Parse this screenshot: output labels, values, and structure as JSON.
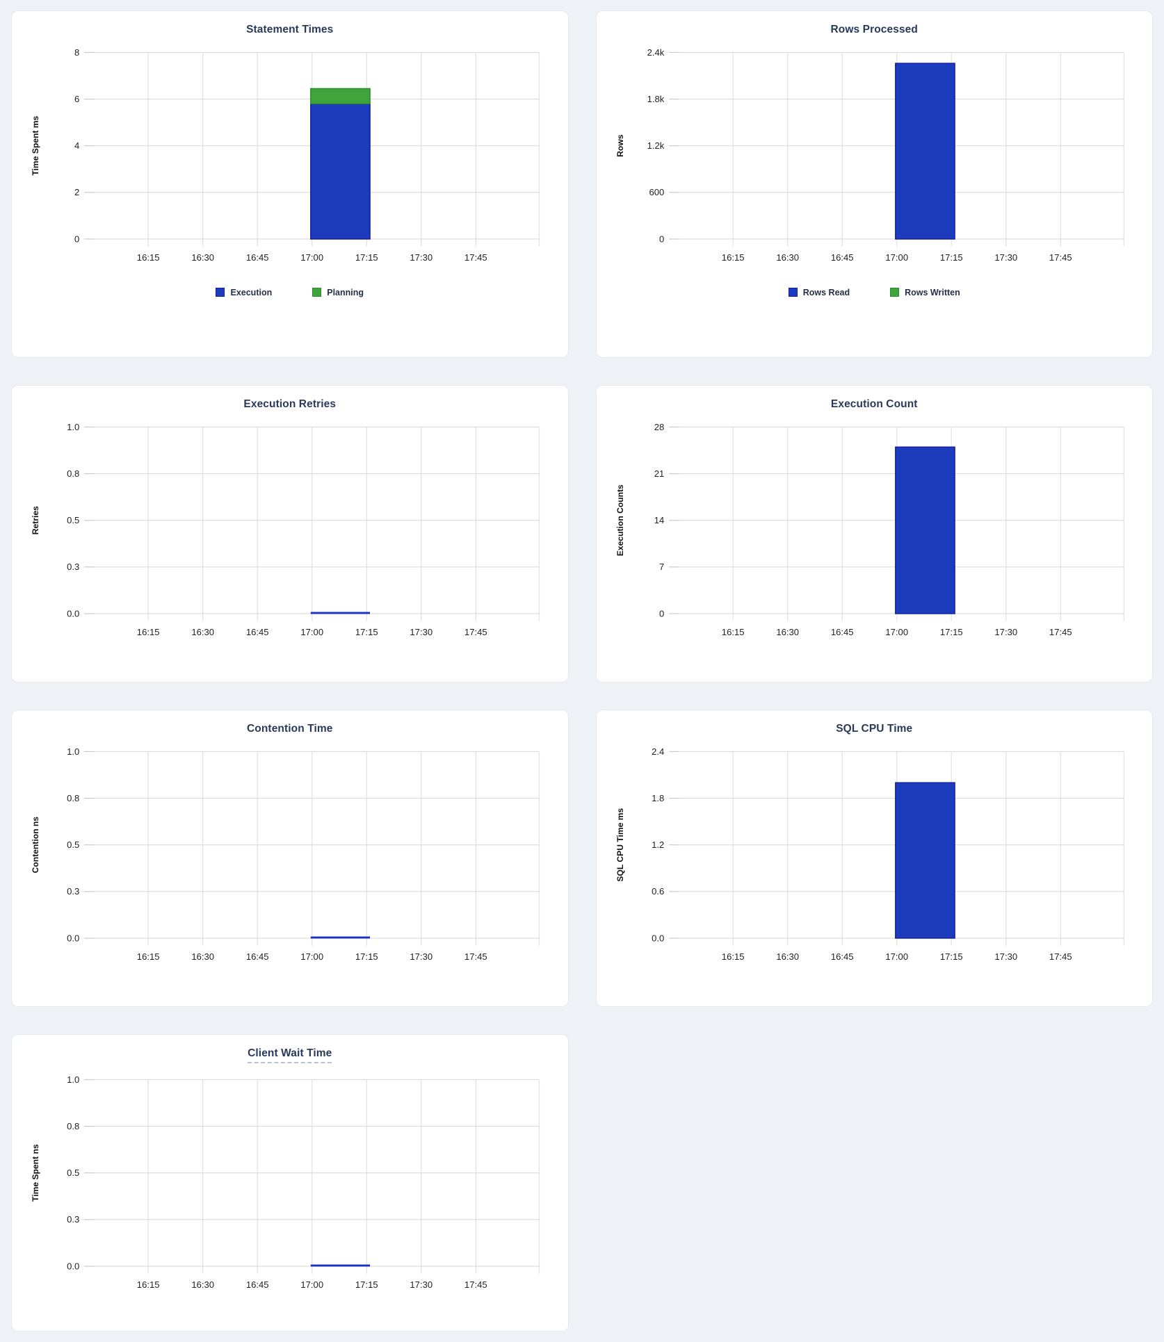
{
  "page": {
    "background_color": "#eef2f7",
    "card_background": "#ffffff"
  },
  "colors": {
    "blue_fill": "#1c3bbd",
    "blue_border": "#131fa0",
    "green_fill": "#3fa43c",
    "green_border": "#2b8c2a",
    "zero_line": "#1d33c5",
    "title_text": "#29395c",
    "grid_line": "#dedede",
    "tick_text": "#1f1f1f"
  },
  "x_axis": {
    "ticks": [
      "16:15",
      "16:30",
      "16:45",
      "17:00",
      "17:15",
      "17:30",
      "17:45"
    ],
    "data_interval": {
      "start": "17:00",
      "end": "17:15"
    }
  },
  "chart_data": [
    {
      "type": "bar",
      "stacked": true,
      "title": "Statement Times",
      "underlined": false,
      "ylabel": "Time Spent ms",
      "yticks": [
        "0",
        "2",
        "4",
        "6",
        "8"
      ],
      "ymax": 8,
      "x_interval": [
        "17:00",
        "17:15"
      ],
      "series": [
        {
          "name": "Execution",
          "color": "blue",
          "value": 5.8
        },
        {
          "name": "Planning",
          "color": "green",
          "value": 0.65
        }
      ],
      "legend": [
        {
          "label": "Execution",
          "color": "blue"
        },
        {
          "label": "Planning",
          "color": "green"
        }
      ]
    },
    {
      "type": "bar",
      "stacked": true,
      "title": "Rows Processed",
      "underlined": false,
      "ylabel": "Rows",
      "yticks": [
        "0",
        "600",
        "1.2k",
        "1.8k",
        "2.4k"
      ],
      "ymax": 2400,
      "x_interval": [
        "17:00",
        "17:15"
      ],
      "series": [
        {
          "name": "Rows Read",
          "color": "blue",
          "value": 2260
        },
        {
          "name": "Rows Written",
          "color": "green",
          "value": 0
        }
      ],
      "legend": [
        {
          "label": "Rows Read",
          "color": "blue"
        },
        {
          "label": "Rows Written",
          "color": "green"
        }
      ]
    },
    {
      "type": "line",
      "title": "Execution Retries",
      "underlined": false,
      "ylabel": "Retries",
      "yticks": [
        "0.0",
        "0.3",
        "0.5",
        "0.8",
        "1.0"
      ],
      "ymax": 1,
      "x_interval": [
        "17:00",
        "17:15"
      ],
      "series": [
        {
          "name": "Retries",
          "color": "blue",
          "value": 0
        }
      ],
      "legend": null
    },
    {
      "type": "bar",
      "stacked": false,
      "title": "Execution Count",
      "underlined": false,
      "ylabel": "Execution Counts",
      "yticks": [
        "0",
        "7",
        "14",
        "21",
        "28"
      ],
      "ymax": 28,
      "x_interval": [
        "17:00",
        "17:15"
      ],
      "series": [
        {
          "name": "Execution Count",
          "color": "blue",
          "value": 25
        }
      ],
      "legend": null
    },
    {
      "type": "line",
      "title": "Contention Time",
      "underlined": false,
      "ylabel": "Contention ns",
      "yticks": [
        "0.0",
        "0.3",
        "0.5",
        "0.8",
        "1.0"
      ],
      "ymax": 1,
      "x_interval": [
        "17:00",
        "17:15"
      ],
      "series": [
        {
          "name": "Contention",
          "color": "blue",
          "value": 0
        }
      ],
      "legend": null
    },
    {
      "type": "bar",
      "stacked": false,
      "title": "SQL CPU Time",
      "underlined": false,
      "ylabel": "SQL CPU Time ms",
      "yticks": [
        "0.0",
        "0.6",
        "1.2",
        "1.8",
        "2.4"
      ],
      "ymax": 2.4,
      "x_interval": [
        "17:00",
        "17:15"
      ],
      "series": [
        {
          "name": "SQL CPU Time",
          "color": "blue",
          "value": 2.0
        }
      ],
      "legend": null
    },
    {
      "type": "line",
      "title": "Client Wait Time",
      "underlined": true,
      "ylabel": "Time Spent ns",
      "yticks": [
        "0.0",
        "0.3",
        "0.5",
        "0.8",
        "1.0"
      ],
      "ymax": 1,
      "x_interval": [
        "17:00",
        "17:15"
      ],
      "series": [
        {
          "name": "Client Wait",
          "color": "blue",
          "value": 0
        }
      ],
      "legend": null
    }
  ]
}
